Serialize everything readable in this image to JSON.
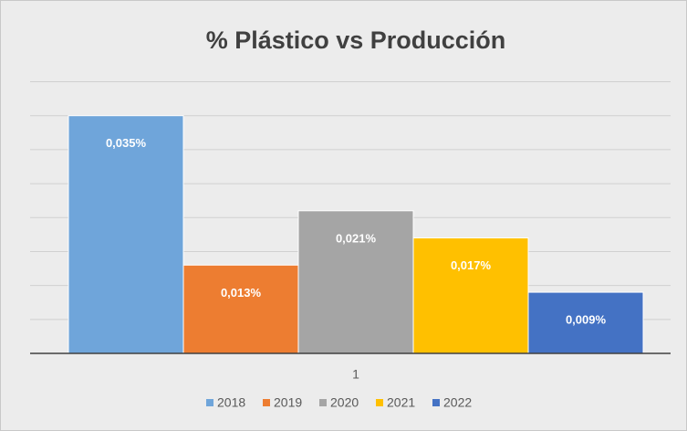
{
  "chart_data": {
    "type": "bar",
    "title": "% Plástico vs Producción",
    "categories": [
      "1"
    ],
    "series": [
      {
        "name": "2018",
        "color": "#6fa5da",
        "values": [
          0.035
        ],
        "value_labels": [
          "0,035%"
        ]
      },
      {
        "name": "2019",
        "color": "#ed7d31",
        "values": [
          0.013
        ],
        "value_labels": [
          "0,013%"
        ]
      },
      {
        "name": "2020",
        "color": "#a5a5a5",
        "values": [
          0.021
        ],
        "value_labels": [
          "0,021%"
        ]
      },
      {
        "name": "2021",
        "color": "#ffc000",
        "values": [
          0.017
        ],
        "value_labels": [
          "0,017%"
        ]
      },
      {
        "name": "2022",
        "color": "#4472c4",
        "values": [
          0.009
        ],
        "value_labels": [
          "0,009%"
        ]
      }
    ],
    "ylim": [
      0,
      0.04
    ],
    "yticks": [
      0,
      0.005,
      0.01,
      0.015,
      0.02,
      0.025,
      0.03,
      0.035,
      0.04
    ],
    "grid": true,
    "legend": "bottom"
  }
}
